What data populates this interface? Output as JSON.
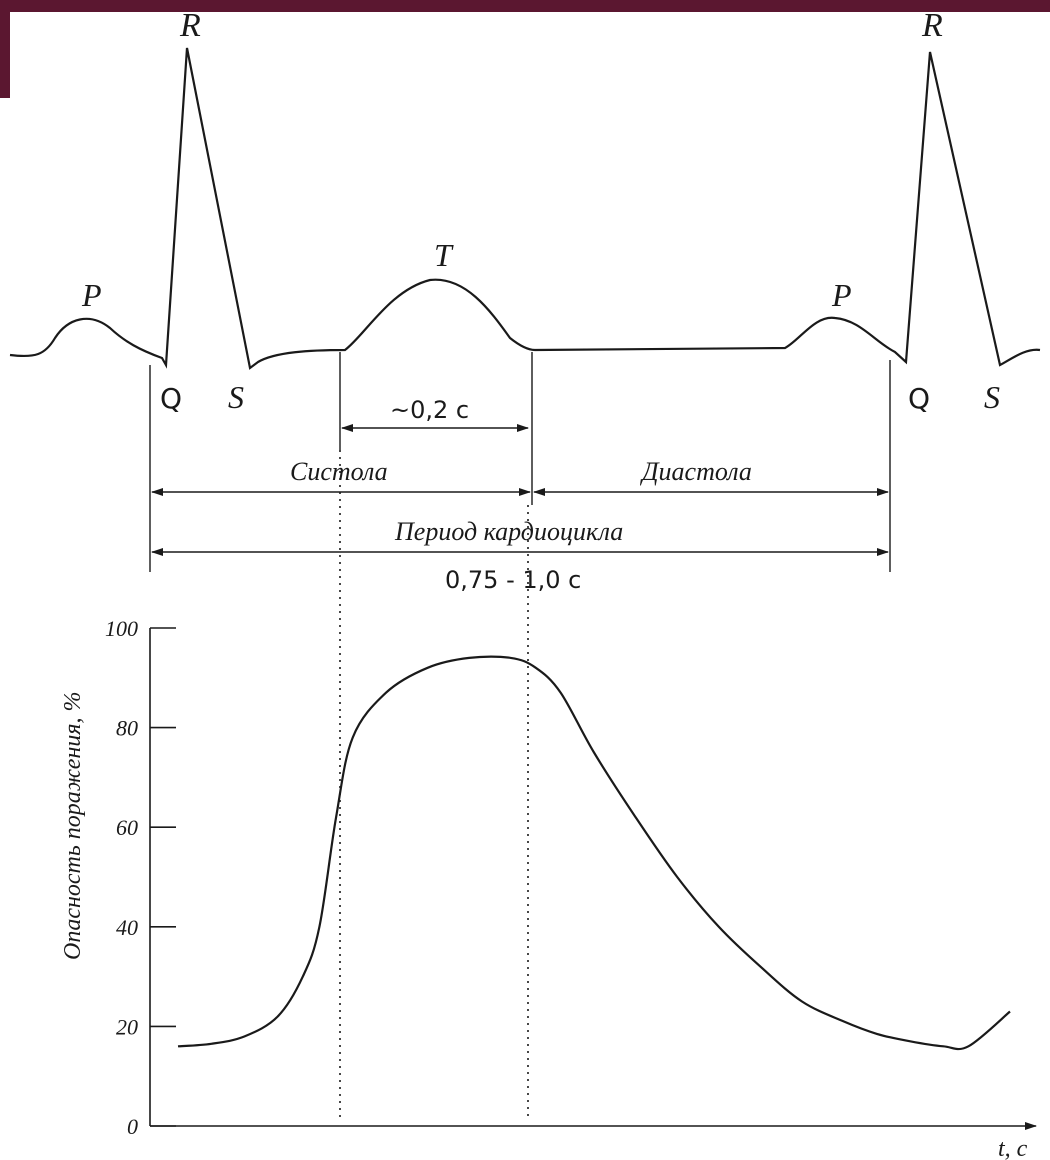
{
  "colors": {
    "corner_bar": "#5b1730",
    "ink": "#1a1a1a",
    "background": "#ffffff"
  },
  "ecg": {
    "waves": {
      "p1": "P",
      "q1": "Q",
      "r1": "R",
      "s1": "S",
      "t": "T",
      "p2": "P",
      "q2": "Q",
      "r2": "R",
      "s2": "S"
    }
  },
  "intervals": {
    "t_duration": "~0,2 с",
    "systole": "Систола",
    "diastole": "Диастола",
    "period": "Период кардиоцикла",
    "period_duration": "0,75 - 1,0 с"
  },
  "chart_data": {
    "type": "line",
    "ylabel": "Опасность поражения, %",
    "xlabel": "t, с",
    "ylim": [
      0,
      100
    ],
    "yticks": [
      "0",
      "20",
      "40",
      "60",
      "80",
      "100"
    ],
    "series": [
      {
        "x": [
          0.0,
          0.04,
          0.08,
          0.12,
          0.15,
          0.17,
          0.19,
          0.21,
          0.25,
          0.3,
          0.35,
          0.4,
          0.43,
          0.46,
          0.5,
          0.55,
          0.6,
          0.65,
          0.7,
          0.75,
          0.8,
          0.84,
          0.88,
          0.92,
          0.95,
          1.0
        ],
        "values": [
          16,
          16.5,
          18,
          22,
          30,
          40,
          62,
          78,
          87,
          92,
          94,
          94,
          92,
          87,
          75,
          62,
          50,
          40,
          32,
          25,
          21,
          18.5,
          17,
          16,
          16,
          23
        ]
      }
    ]
  }
}
